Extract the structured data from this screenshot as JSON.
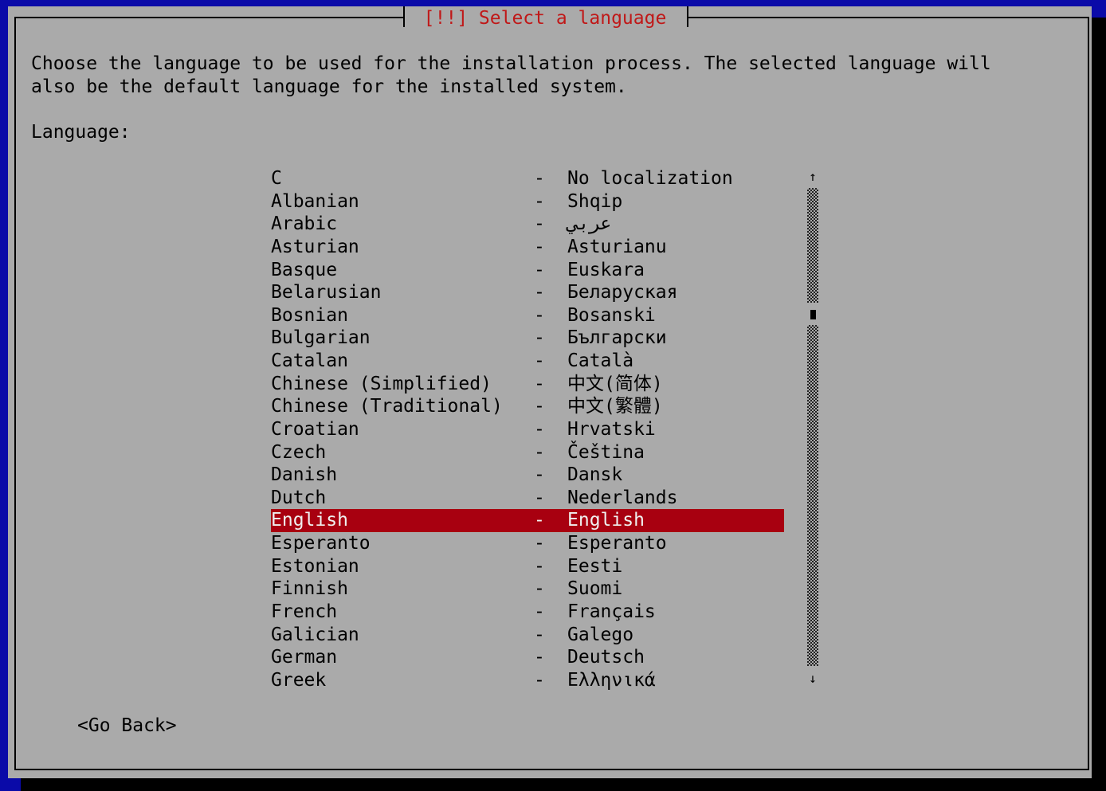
{
  "dialog": {
    "title": "[!!] Select a language",
    "description_line1": "Choose the language to be used for the installation process. The selected language will",
    "description_line2": "also be the default language for the installed system.",
    "field_label": "Language:",
    "separator": "-",
    "selected_index": 15,
    "languages": [
      {
        "name": "C",
        "native": "No localization"
      },
      {
        "name": "Albanian",
        "native": "Shqip"
      },
      {
        "name": "Arabic",
        "native": "عربي"
      },
      {
        "name": "Asturian",
        "native": "Asturianu"
      },
      {
        "name": "Basque",
        "native": "Euskara"
      },
      {
        "name": "Belarusian",
        "native": "Беларуская"
      },
      {
        "name": "Bosnian",
        "native": "Bosanski"
      },
      {
        "name": "Bulgarian",
        "native": "Български"
      },
      {
        "name": "Catalan",
        "native": "Català"
      },
      {
        "name": "Chinese (Simplified)",
        "native": "中文(简体)"
      },
      {
        "name": "Chinese (Traditional)",
        "native": "中文(繁體)"
      },
      {
        "name": "Croatian",
        "native": "Hrvatski"
      },
      {
        "name": "Czech",
        "native": "Čeština"
      },
      {
        "name": "Danish",
        "native": "Dansk"
      },
      {
        "name": "Dutch",
        "native": "Nederlands"
      },
      {
        "name": "English",
        "native": "English"
      },
      {
        "name": "Esperanto",
        "native": "Esperanto"
      },
      {
        "name": "Estonian",
        "native": "Eesti"
      },
      {
        "name": "Finnish",
        "native": "Suomi"
      },
      {
        "name": "French",
        "native": "Français"
      },
      {
        "name": "Galician",
        "native": "Galego"
      },
      {
        "name": "German",
        "native": "Deutsch"
      },
      {
        "name": "Greek",
        "native": "Ελληνικά"
      }
    ],
    "scroll_up_icon": "↑",
    "scroll_down_icon": "↓",
    "go_back_label": "<Go Back>"
  },
  "colors": {
    "background": "#0a0aa8",
    "panel": "#aaaaaa",
    "title": "#c01818",
    "selection": "#a80010"
  }
}
